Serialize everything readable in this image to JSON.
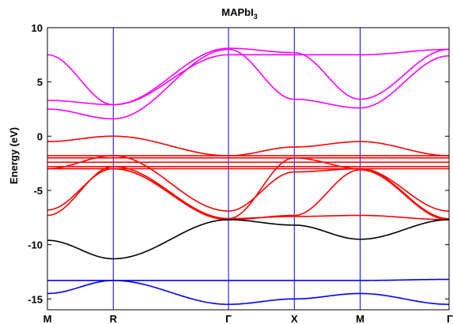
{
  "chart_data": {
    "type": "line",
    "title": "MAPbI",
    "title_subscript": "3",
    "ylabel": "Energy (eV)",
    "xlabel": "",
    "ylim": [
      -16,
      10
    ],
    "yticks": [
      10,
      5,
      0,
      -5,
      -10,
      -15
    ],
    "xlim": [
      0,
      6.1
    ],
    "k_points": [
      {
        "label": "M",
        "x": 0.0
      },
      {
        "label": "R",
        "x": 1.0
      },
      {
        "label": "Γ",
        "x": 2.75
      },
      {
        "label": "X",
        "x": 3.75
      },
      {
        "label": "M",
        "x": 4.75
      },
      {
        "label": "Γ",
        "x": 6.1
      }
    ],
    "grid": false,
    "colors": {
      "upper_bands": "#ff00ff",
      "mid_bands": "#ff0000",
      "deep_band": "#000000",
      "low_bands": "#0000ff",
      "kpoint_lines": "#0000ff"
    },
    "series": [
      {
        "group": "upper",
        "color": "#ff00ff",
        "x": [
          0,
          1,
          2.75,
          3.75,
          4.75,
          6.1
        ],
        "y": [
          7.5,
          2.9,
          8.1,
          7.7,
          3.4,
          8.0
        ]
      },
      {
        "group": "upper",
        "color": "#ff00ff",
        "x": [
          0,
          1,
          2.75,
          3.75,
          4.75,
          6.1
        ],
        "y": [
          3.3,
          2.9,
          7.5,
          7.5,
          7.5,
          8.0
        ]
      },
      {
        "group": "upper",
        "color": "#ff00ff",
        "x": [
          0,
          1,
          2.75,
          3.75,
          4.75,
          6.1
        ],
        "y": [
          2.5,
          1.6,
          8.0,
          3.4,
          2.6,
          7.4
        ]
      },
      {
        "group": "mid",
        "color": "#ff0000",
        "x": [
          0,
          1,
          2.75,
          3.75,
          4.75,
          6.1
        ],
        "y": [
          -0.5,
          0.0,
          -1.8,
          -1.0,
          -0.5,
          -1.8
        ]
      },
      {
        "group": "mid",
        "color": "#ff0000",
        "x": [
          0,
          1,
          2.75,
          3.75,
          4.75,
          6.1
        ],
        "y": [
          -1.8,
          -1.8,
          -1.8,
          -1.8,
          -1.8,
          -1.8
        ]
      },
      {
        "group": "mid",
        "color": "#ff0000",
        "x": [
          0,
          1,
          2.75,
          3.75,
          4.75,
          6.1
        ],
        "y": [
          -2.0,
          -2.0,
          -2.0,
          -2.0,
          -2.0,
          -2.0
        ]
      },
      {
        "group": "mid",
        "color": "#ff0000",
        "x": [
          0,
          1,
          2.75,
          3.75,
          4.75,
          6.1
        ],
        "y": [
          -2.4,
          -2.4,
          -2.4,
          -2.4,
          -2.4,
          -2.4
        ]
      },
      {
        "group": "mid",
        "color": "#ff0000",
        "x": [
          0,
          1,
          2.75,
          3.75,
          4.75,
          6.1
        ],
        "y": [
          -2.8,
          -2.8,
          -2.8,
          -2.8,
          -2.8,
          -2.8
        ]
      },
      {
        "group": "mid",
        "color": "#ff0000",
        "x": [
          0,
          1,
          2.75,
          3.75,
          4.75,
          6.1
        ],
        "y": [
          -3.0,
          -3.0,
          -3.0,
          -3.0,
          -3.0,
          -3.0
        ]
      },
      {
        "group": "mid",
        "color": "#ff0000",
        "x": [
          0,
          1,
          2.75,
          3.75,
          4.75,
          6.1
        ],
        "y": [
          -3.0,
          -1.8,
          -6.9,
          -3.3,
          -3.0,
          -6.9
        ]
      },
      {
        "group": "mid",
        "color": "#ff0000",
        "x": [
          0,
          1,
          2.75,
          3.75,
          4.75,
          6.1
        ],
        "y": [
          -7.3,
          -2.8,
          -7.6,
          -2.0,
          -3.0,
          -7.6
        ]
      },
      {
        "group": "mid",
        "color": "#ff0000",
        "x": [
          0,
          1,
          2.75,
          3.75,
          4.75,
          6.1
        ],
        "y": [
          -6.8,
          -3.0,
          -7.7,
          -7.3,
          -3.1,
          -7.7
        ]
      },
      {
        "group": "mid",
        "color": "#ff0000",
        "x": [
          0,
          1,
          2.75,
          3.75,
          4.75,
          6.1
        ],
        "y": [
          -3.0,
          -3.0,
          -7.6,
          -7.4,
          -7.3,
          -7.7
        ]
      },
      {
        "group": "deep",
        "color": "#000000",
        "x": [
          0,
          1,
          2.75,
          3.75,
          4.75,
          6.1
        ],
        "y": [
          -9.6,
          -11.3,
          -7.7,
          -8.2,
          -9.5,
          -7.7
        ]
      },
      {
        "group": "low",
        "color": "#0000ff",
        "x": [
          0,
          1,
          2.75,
          3.75,
          4.75,
          6.1
        ],
        "y": [
          -13.3,
          -13.3,
          -13.3,
          -13.3,
          -13.3,
          -13.2
        ]
      },
      {
        "group": "low",
        "color": "#0000ff",
        "x": [
          0,
          1,
          2.75,
          3.75,
          4.75,
          6.1
        ],
        "y": [
          -14.5,
          -13.3,
          -15.5,
          -15.0,
          -14.5,
          -15.5
        ]
      }
    ]
  }
}
